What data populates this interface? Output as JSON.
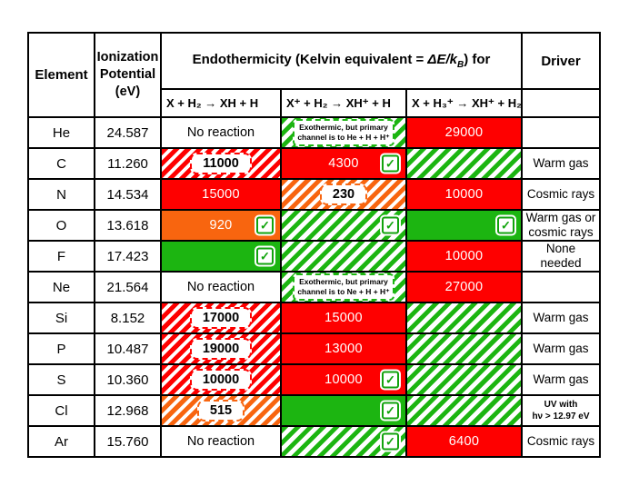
{
  "colors": {
    "red": "#FE0000",
    "orange": "#F8650F",
    "green": "#1CB511",
    "border": "#000000"
  },
  "icons": {
    "check_glyph": "✓",
    "check_meaning": "reaction viable / observed channel"
  },
  "header": {
    "element": "Element",
    "ionization_potential": "Ionization\nPotential\n(eV)",
    "endo_pre": "Endothermicity (Kelvin equivalent = ",
    "endo_math": "ΔE/k",
    "endo_math_sub": "B",
    "endo_post": ") for",
    "driver": "Driver",
    "rx1": "X + H₂ → XH + H",
    "rx2": "X⁺ + H₂ → XH⁺ + H",
    "rx3": "X + H₃⁺ → XH⁺ + H₂"
  },
  "rows": [
    {
      "element": "He",
      "ip": "24.587",
      "c1": {
        "text": "No reaction"
      },
      "c2": {
        "note": "Exothermic, but primary\nchannel is to He + H + H⁺"
      },
      "c3": {
        "value": "29000"
      },
      "driver": ""
    },
    {
      "element": "C",
      "ip": "11.260",
      "c1": {
        "value": "11000"
      },
      "c2": {
        "value": "4300"
      },
      "c3": {},
      "driver": "Warm gas"
    },
    {
      "element": "N",
      "ip": "14.534",
      "c1": {
        "value": "15000"
      },
      "c2": {
        "value": "230"
      },
      "c3": {
        "value": "10000"
      },
      "driver": "Cosmic rays"
    },
    {
      "element": "O",
      "ip": "13.618",
      "c1": {
        "value": "920"
      },
      "c2": {},
      "c3": {},
      "driver": "Warm gas or\ncosmic rays"
    },
    {
      "element": "F",
      "ip": "17.423",
      "c1": {},
      "c2": {},
      "c3": {
        "value": "10000"
      },
      "driver": "None\nneeded"
    },
    {
      "element": "Ne",
      "ip": "21.564",
      "c1": {
        "text": "No reaction"
      },
      "c2": {
        "note": "Exothermic, but primary\nchannel is to Ne + H + H⁺"
      },
      "c3": {
        "value": "27000"
      },
      "driver": ""
    },
    {
      "element": "Si",
      "ip": "8.152",
      "c1": {
        "value": "17000"
      },
      "c2": {
        "value": "15000"
      },
      "c3": {},
      "driver": "Warm gas"
    },
    {
      "element": "P",
      "ip": "10.487",
      "c1": {
        "value": "19000"
      },
      "c2": {
        "value": "13000"
      },
      "c3": {},
      "driver": "Warm gas"
    },
    {
      "element": "S",
      "ip": "10.360",
      "c1": {
        "value": "10000"
      },
      "c2": {
        "value": "10000"
      },
      "c3": {},
      "driver": "Warm gas"
    },
    {
      "element": "Cl",
      "ip": "12.968",
      "c1": {
        "value": "515"
      },
      "c2": {},
      "c3": {},
      "driver": "UV with\nhν > 12.97 eV"
    },
    {
      "element": "Ar",
      "ip": "15.760",
      "c1": {
        "text": "No reaction"
      },
      "c2": {},
      "c3": {
        "value": "6400"
      },
      "driver": "Cosmic rays"
    }
  ]
}
